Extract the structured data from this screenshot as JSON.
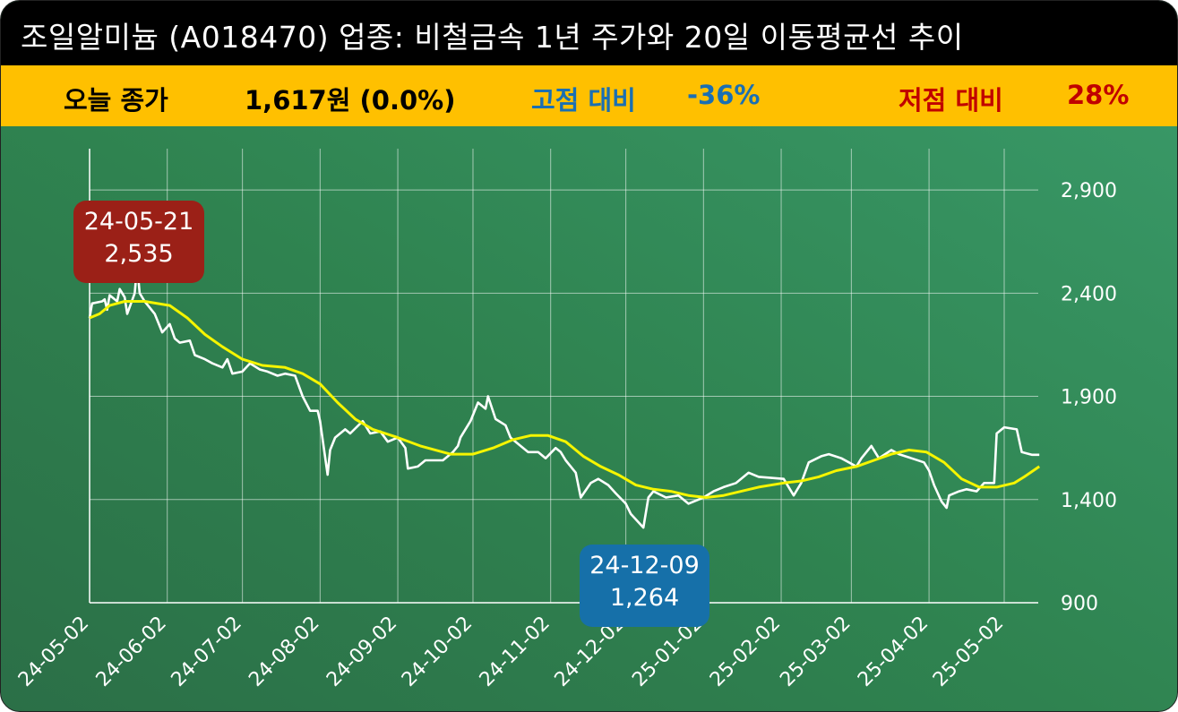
{
  "header": {
    "title": "조일알미늄 (A018470) 업종: 비철금속 1년 주가와 20일 이동평균선 추이"
  },
  "summary": {
    "close_label": "오늘 종가",
    "close_value": "1,617원 (0.0%)",
    "high_label": "고점 대비",
    "high_value": "-36%",
    "low_label": "저점 대비",
    "low_value": "28%"
  },
  "colors": {
    "title_bg": "#000000",
    "summary_bg": "#ffc000",
    "price_line": "#ffffff",
    "ma_line": "#f5f500",
    "high_box": "#9b2017",
    "low_box": "#1670a9",
    "high_text": "#1a6fb3",
    "low_text": "#c00000"
  },
  "annotations": {
    "high": {
      "date": "24-05-21",
      "value": "2,535"
    },
    "low": {
      "date": "24-12-09",
      "value": "1,264"
    }
  },
  "chart_data": {
    "type": "line",
    "title": "조일알미늄 (A018470) 업종: 비철금속 1년 주가와 20일 이동평균선 추이",
    "x_tick_labels": [
      "24-05-02",
      "24-06-02",
      "24-07-02",
      "24-08-02",
      "24-09-02",
      "24-10-02",
      "24-11-02",
      "24-12-02",
      "25-01-02",
      "25-02-02",
      "25-03-02",
      "25-04-02",
      "25-05-02"
    ],
    "y_ticks": [
      900,
      1400,
      1900,
      2400,
      2900
    ],
    "y_tick_labels": [
      "900",
      "1,400",
      "1,900",
      "2,400",
      "2,900"
    ],
    "ylim": [
      900,
      3100
    ],
    "grid": true,
    "series": [
      {
        "name": "",
        "color": "#ffffff",
        "points": [
          [
            "24-05-02",
            2280
          ],
          [
            "24-05-03",
            2350
          ],
          [
            "24-05-07",
            2360
          ],
          [
            "24-05-08",
            2370
          ],
          [
            "24-05-09",
            2320
          ],
          [
            "24-05-10",
            2390
          ],
          [
            "24-05-13",
            2360
          ],
          [
            "24-05-14",
            2420
          ],
          [
            "24-05-16",
            2380
          ],
          [
            "24-05-17",
            2300
          ],
          [
            "24-05-20",
            2400
          ],
          [
            "24-05-21",
            2535
          ],
          [
            "24-05-22",
            2400
          ],
          [
            "24-05-24",
            2360
          ],
          [
            "24-05-28",
            2300
          ],
          [
            "24-05-31",
            2210
          ],
          [
            "24-06-03",
            2250
          ],
          [
            "24-06-05",
            2180
          ],
          [
            "24-06-07",
            2160
          ],
          [
            "24-06-11",
            2170
          ],
          [
            "24-06-13",
            2100
          ],
          [
            "24-06-17",
            2080
          ],
          [
            "24-06-20",
            2060
          ],
          [
            "24-06-24",
            2040
          ],
          [
            "24-06-26",
            2080
          ],
          [
            "24-06-28",
            2010
          ],
          [
            "24-07-02",
            2020
          ],
          [
            "24-07-05",
            2060
          ],
          [
            "24-07-09",
            2030
          ],
          [
            "24-07-12",
            2020
          ],
          [
            "24-07-16",
            2000
          ],
          [
            "24-07-19",
            2010
          ],
          [
            "24-07-23",
            2000
          ],
          [
            "24-07-26",
            1900
          ],
          [
            "24-07-29",
            1830
          ],
          [
            "24-08-01",
            1830
          ],
          [
            "24-08-02",
            1780
          ],
          [
            "24-08-05",
            1520
          ],
          [
            "24-08-06",
            1640
          ],
          [
            "24-08-08",
            1700
          ],
          [
            "24-08-12",
            1740
          ],
          [
            "24-08-14",
            1720
          ],
          [
            "24-08-19",
            1780
          ],
          [
            "24-08-22",
            1720
          ],
          [
            "24-08-26",
            1730
          ],
          [
            "24-08-29",
            1680
          ],
          [
            "24-09-02",
            1700
          ],
          [
            "24-09-05",
            1650
          ],
          [
            "24-09-06",
            1550
          ],
          [
            "24-09-10",
            1560
          ],
          [
            "24-09-13",
            1590
          ],
          [
            "24-09-20",
            1590
          ],
          [
            "24-09-24",
            1630
          ],
          [
            "24-09-26",
            1660
          ],
          [
            "24-09-27",
            1700
          ],
          [
            "24-10-01",
            1780
          ],
          [
            "24-10-04",
            1870
          ],
          [
            "24-10-07",
            1840
          ],
          [
            "24-10-08",
            1900
          ],
          [
            "24-10-11",
            1790
          ],
          [
            "24-10-15",
            1760
          ],
          [
            "24-10-17",
            1700
          ],
          [
            "24-10-21",
            1660
          ],
          [
            "24-10-24",
            1630
          ],
          [
            "24-10-28",
            1630
          ],
          [
            "24-10-31",
            1600
          ],
          [
            "24-11-04",
            1650
          ],
          [
            "24-11-06",
            1630
          ],
          [
            "24-11-08",
            1590
          ],
          [
            "24-11-12",
            1530
          ],
          [
            "24-11-14",
            1410
          ],
          [
            "24-11-18",
            1480
          ],
          [
            "24-11-21",
            1500
          ],
          [
            "24-11-25",
            1470
          ],
          [
            "24-11-28",
            1430
          ],
          [
            "24-12-02",
            1380
          ],
          [
            "24-12-04",
            1330
          ],
          [
            "24-12-09",
            1264
          ],
          [
            "24-12-11",
            1410
          ],
          [
            "24-12-13",
            1440
          ],
          [
            "24-12-18",
            1410
          ],
          [
            "24-12-23",
            1420
          ],
          [
            "24-12-27",
            1380
          ],
          [
            "25-01-02",
            1410
          ],
          [
            "25-01-06",
            1440
          ],
          [
            "25-01-10",
            1460
          ],
          [
            "25-01-15",
            1480
          ],
          [
            "25-01-20",
            1530
          ],
          [
            "25-01-24",
            1510
          ],
          [
            "25-02-03",
            1500
          ],
          [
            "25-02-07",
            1420
          ],
          [
            "25-02-10",
            1480
          ],
          [
            "25-02-13",
            1580
          ],
          [
            "25-02-18",
            1610
          ],
          [
            "25-02-21",
            1620
          ],
          [
            "25-02-26",
            1600
          ],
          [
            "25-03-04",
            1560
          ],
          [
            "25-03-06",
            1600
          ],
          [
            "25-03-10",
            1660
          ],
          [
            "25-03-13",
            1600
          ],
          [
            "25-03-18",
            1640
          ],
          [
            "25-03-21",
            1620
          ],
          [
            "25-03-26",
            1600
          ],
          [
            "25-03-31",
            1580
          ],
          [
            "25-04-02",
            1540
          ],
          [
            "25-04-04",
            1470
          ],
          [
            "25-04-07",
            1390
          ],
          [
            "25-04-09",
            1360
          ],
          [
            "25-04-10",
            1420
          ],
          [
            "25-04-14",
            1440
          ],
          [
            "25-04-17",
            1450
          ],
          [
            "25-04-21",
            1440
          ],
          [
            "25-04-24",
            1480
          ],
          [
            "25-04-28",
            1480
          ],
          [
            "25-04-29",
            1720
          ],
          [
            "25-05-02",
            1750
          ],
          [
            "25-05-07",
            1740
          ],
          [
            "25-05-09",
            1630
          ],
          [
            "25-05-13",
            1617
          ],
          [
            "25-05-16",
            1617
          ]
        ]
      },
      {
        "name": "",
        "color": "#f5f500",
        "points": [
          [
            "24-05-02",
            2280
          ],
          [
            "24-05-06",
            2300
          ],
          [
            "24-05-10",
            2340
          ],
          [
            "24-05-16",
            2360
          ],
          [
            "24-05-24",
            2360
          ],
          [
            "24-06-03",
            2340
          ],
          [
            "24-06-10",
            2280
          ],
          [
            "24-06-17",
            2200
          ],
          [
            "24-06-24",
            2140
          ],
          [
            "24-07-02",
            2080
          ],
          [
            "24-07-10",
            2050
          ],
          [
            "24-07-19",
            2040
          ],
          [
            "24-07-26",
            2010
          ],
          [
            "24-08-02",
            1960
          ],
          [
            "24-08-09",
            1870
          ],
          [
            "24-08-16",
            1790
          ],
          [
            "24-08-23",
            1740
          ],
          [
            "24-09-02",
            1700
          ],
          [
            "24-09-11",
            1660
          ],
          [
            "24-09-23",
            1620
          ],
          [
            "24-10-02",
            1620
          ],
          [
            "24-10-10",
            1650
          ],
          [
            "24-10-18",
            1690
          ],
          [
            "24-10-25",
            1710
          ],
          [
            "24-11-01",
            1710
          ],
          [
            "24-11-08",
            1680
          ],
          [
            "24-11-15",
            1610
          ],
          [
            "24-11-22",
            1560
          ],
          [
            "24-11-29",
            1520
          ],
          [
            "24-12-06",
            1470
          ],
          [
            "24-12-13",
            1450
          ],
          [
            "24-12-20",
            1440
          ],
          [
            "24-12-27",
            1420
          ],
          [
            "25-01-03",
            1410
          ],
          [
            "25-01-10",
            1420
          ],
          [
            "25-01-17",
            1440
          ],
          [
            "25-01-24",
            1460
          ],
          [
            "25-02-03",
            1480
          ],
          [
            "25-02-10",
            1490
          ],
          [
            "25-02-17",
            1510
          ],
          [
            "25-02-24",
            1540
          ],
          [
            "25-03-04",
            1560
          ],
          [
            "25-03-11",
            1590
          ],
          [
            "25-03-18",
            1620
          ],
          [
            "25-03-25",
            1640
          ],
          [
            "25-04-01",
            1630
          ],
          [
            "25-04-08",
            1580
          ],
          [
            "25-04-15",
            1500
          ],
          [
            "25-04-22",
            1460
          ],
          [
            "25-04-29",
            1460
          ],
          [
            "25-05-06",
            1480
          ],
          [
            "25-05-10",
            1510
          ],
          [
            "25-05-16",
            1560
          ]
        ]
      }
    ]
  }
}
